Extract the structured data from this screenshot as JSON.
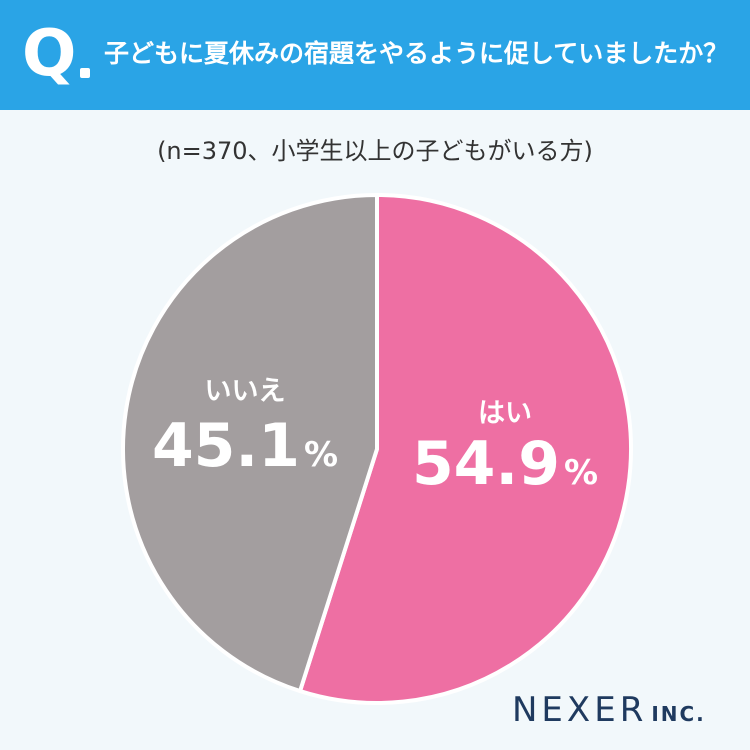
{
  "header": {
    "q_mark": "Q",
    "question": "子どもに夏休みの宿題をやるように促していましたか？"
  },
  "subtitle": "(n=370、小学生以上の子どもがいる方)",
  "chart_data": {
    "type": "pie",
    "title": "子どもに夏休みの宿題をやるように促していましたか？",
    "subtitle": "(n=370、小学生以上の子どもがいる方)",
    "slices": [
      {
        "label": "はい",
        "value": 54.9,
        "value_text": "54.9",
        "unit": "%",
        "color": "#ee6fa3"
      },
      {
        "label": "いいえ",
        "value": 45.1,
        "value_text": "45.1",
        "unit": "%",
        "color": "#a39e9f"
      }
    ],
    "start": "12 o'clock, clockwise"
  },
  "logo": {
    "main": "NEXER",
    "suffix": "INC."
  },
  "colors": {
    "header": "#2aa4e6",
    "background": "#f2f8fb",
    "yes": "#ee6fa3",
    "no": "#a39e9f"
  }
}
